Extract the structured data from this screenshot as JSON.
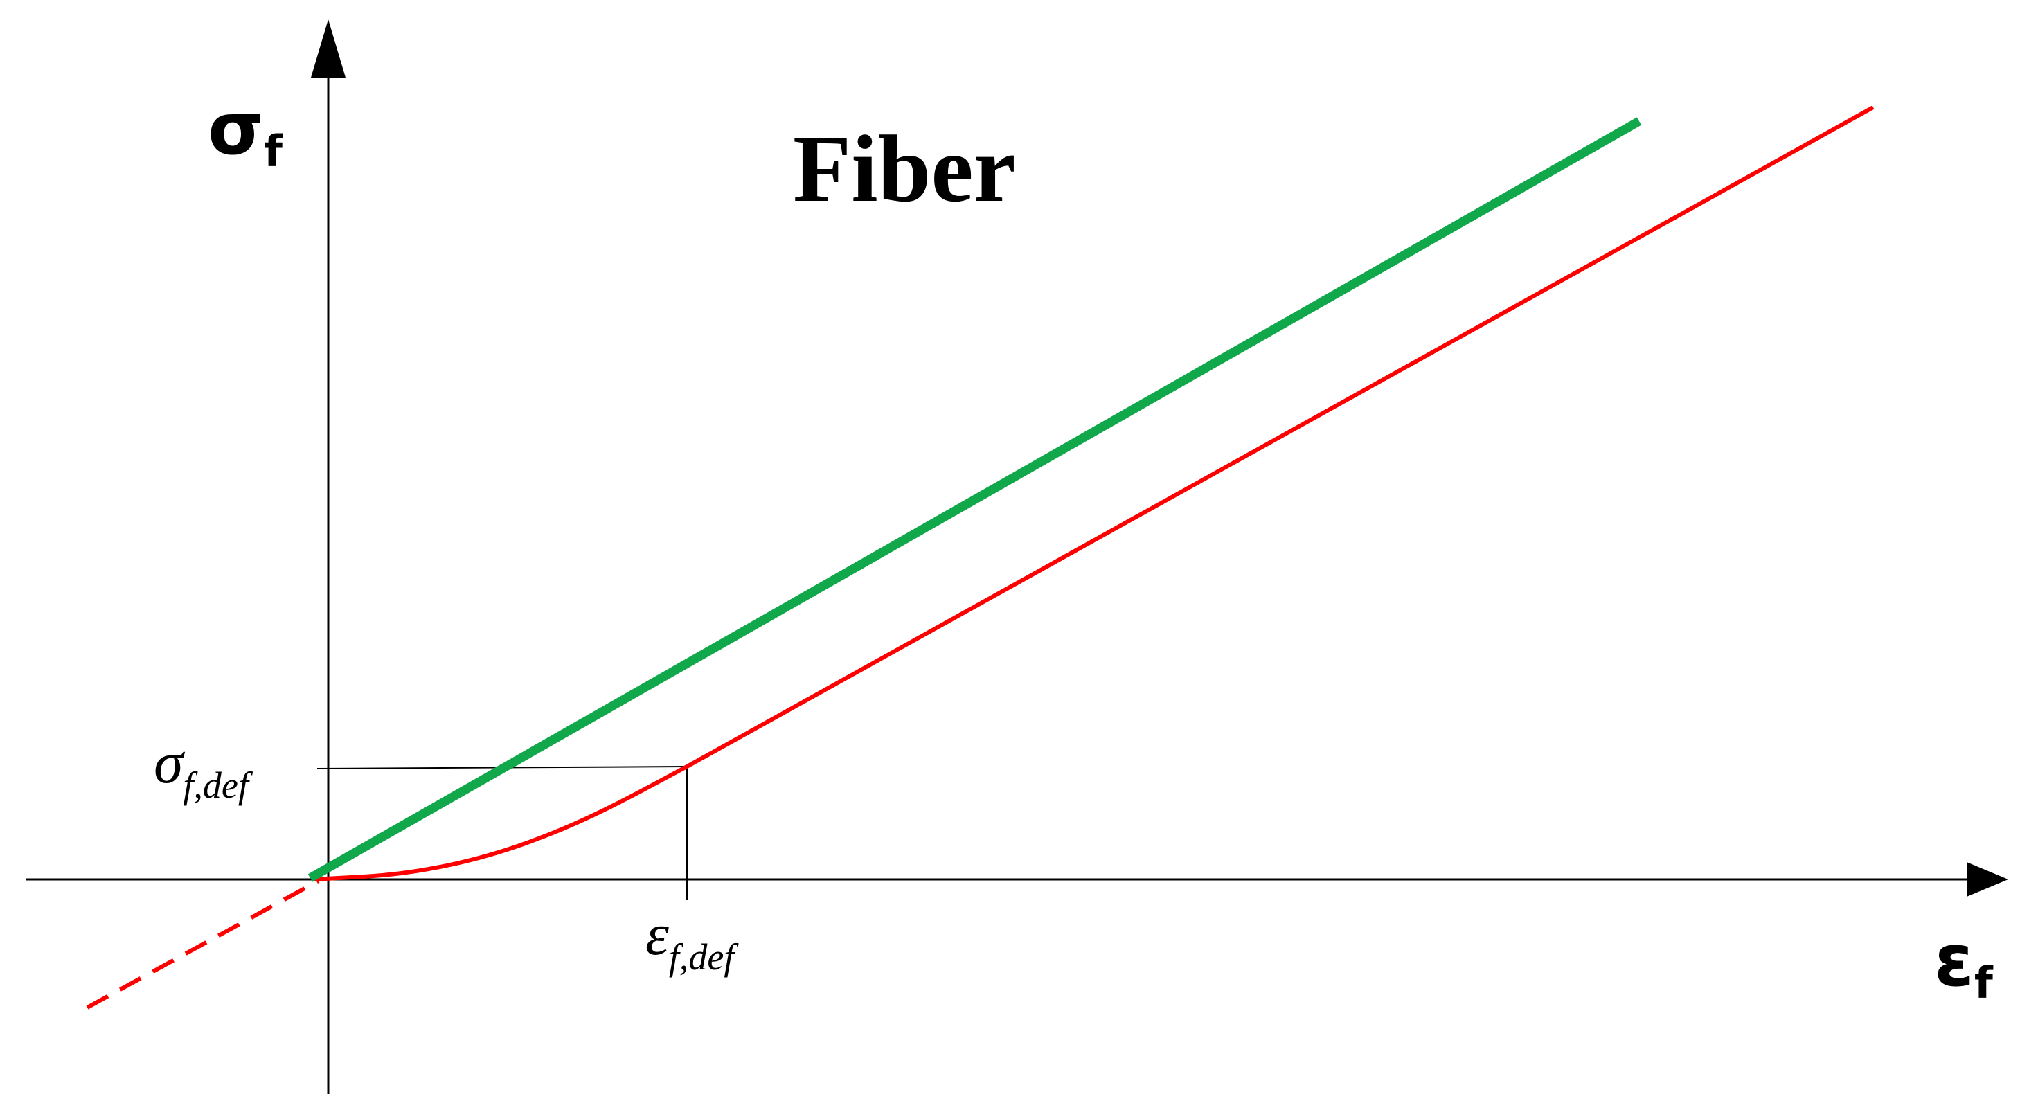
{
  "figure": {
    "title": "Fiber",
    "y_axis_label": {
      "symbol": "σ",
      "subscript": "f"
    },
    "x_axis_label": {
      "symbol": "ε",
      "subscript": "f"
    },
    "y_marker_label": {
      "symbol": "σ",
      "subscript": "f,def"
    },
    "x_marker_label": {
      "symbol": "ε",
      "subscript": "f,def"
    },
    "colors": {
      "linear_line": "#10a84a",
      "fiber_curve": "#ff0000",
      "axes": "#000000",
      "background": "#ffffff"
    },
    "line_styles": {
      "fiber_curve_negative_segment": "dashed",
      "fiber_curve_positive_segment": "solid",
      "linear_line": "solid"
    }
  }
}
